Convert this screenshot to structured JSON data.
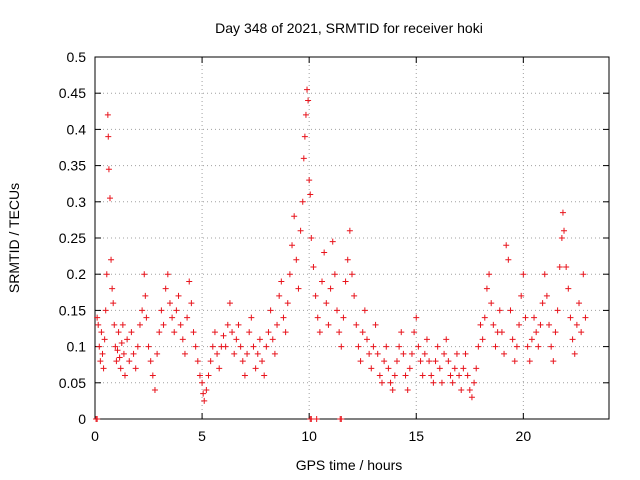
{
  "chart_data": {
    "type": "scatter",
    "title": "Day 348 of 2021, SRMTID for receiver hoki",
    "xlabel": "GPS time / hours",
    "ylabel": "SRMTID / TECUs",
    "xlim": [
      0,
      24
    ],
    "ylim": [
      0,
      0.5
    ],
    "xticks": [
      0,
      5,
      10,
      15,
      20
    ],
    "xtick_labels": [
      "0",
      "5",
      "10",
      "15",
      "20"
    ],
    "yticks": [
      0,
      0.05,
      0.1,
      0.15,
      0.2,
      0.25,
      0.3,
      0.35,
      0.4,
      0.45,
      0.5
    ],
    "ytick_labels": [
      "0",
      "0.05",
      "0.1",
      "0.15",
      "0.2",
      "0.25",
      "0.3",
      "0.35",
      "0.4",
      "0.45",
      "0.5"
    ],
    "grid": true,
    "marker": "+",
    "color": "#e8141c",
    "series": [
      {
        "name": "SRMTID",
        "points": [
          [
            0.1,
            0.14
          ],
          [
            0.15,
            0.13
          ],
          [
            0.2,
            0.1
          ],
          [
            0.25,
            0.08
          ],
          [
            0.3,
            0.12
          ],
          [
            0.35,
            0.09
          ],
          [
            0.4,
            0.07
          ],
          [
            0.45,
            0.11
          ],
          [
            0.5,
            0.15
          ],
          [
            0.55,
            0.2
          ],
          [
            0.6,
            0.42
          ],
          [
            0.62,
            0.39
          ],
          [
            0.65,
            0.345
          ],
          [
            0.7,
            0.305
          ],
          [
            0.75,
            0.22
          ],
          [
            0.8,
            0.18
          ],
          [
            0.85,
            0.16
          ],
          [
            0.9,
            0.13
          ],
          [
            0.95,
            0.1
          ],
          [
            1.0,
            0.08
          ],
          [
            1.05,
            0.095
          ],
          [
            1.1,
            0.12
          ],
          [
            1.15,
            0.085
          ],
          [
            1.2,
            0.07
          ],
          [
            1.25,
            0.105
          ],
          [
            1.3,
            0.13
          ],
          [
            1.35,
            0.09
          ],
          [
            1.4,
            0.06
          ],
          [
            1.5,
            0.11
          ],
          [
            1.6,
            0.08
          ],
          [
            1.7,
            0.12
          ],
          [
            1.8,
            0.09
          ],
          [
            1.9,
            0.07
          ],
          [
            2.0,
            0.1
          ],
          [
            2.1,
            0.13
          ],
          [
            2.2,
            0.15
          ],
          [
            2.3,
            0.2
          ],
          [
            2.35,
            0.17
          ],
          [
            2.4,
            0.14
          ],
          [
            2.5,
            0.1
          ],
          [
            2.6,
            0.08
          ],
          [
            2.7,
            0.06
          ],
          [
            2.8,
            0.04
          ],
          [
            2.9,
            0.09
          ],
          [
            3.0,
            0.12
          ],
          [
            3.1,
            0.15
          ],
          [
            3.2,
            0.13
          ],
          [
            3.3,
            0.18
          ],
          [
            3.4,
            0.2
          ],
          [
            3.5,
            0.16
          ],
          [
            3.6,
            0.14
          ],
          [
            3.7,
            0.12
          ],
          [
            3.8,
            0.15
          ],
          [
            3.9,
            0.17
          ],
          [
            4.0,
            0.13
          ],
          [
            4.1,
            0.11
          ],
          [
            4.2,
            0.09
          ],
          [
            4.3,
            0.14
          ],
          [
            4.4,
            0.19
          ],
          [
            4.5,
            0.16
          ],
          [
            4.6,
            0.12
          ],
          [
            4.7,
            0.1
          ],
          [
            4.8,
            0.08
          ],
          [
            4.9,
            0.06
          ],
          [
            5.0,
            0.05
          ],
          [
            5.05,
            0.035
          ],
          [
            5.1,
            0.025
          ],
          [
            5.2,
            0.04
          ],
          [
            5.3,
            0.06
          ],
          [
            5.4,
            0.08
          ],
          [
            5.5,
            0.1
          ],
          [
            5.6,
            0.12
          ],
          [
            5.7,
            0.09
          ],
          [
            5.8,
            0.07
          ],
          [
            5.9,
            0.1
          ],
          [
            6.0,
            0.115
          ],
          [
            6.1,
            0.1
          ],
          [
            6.2,
            0.13
          ],
          [
            6.3,
            0.16
          ],
          [
            6.4,
            0.12
          ],
          [
            6.5,
            0.09
          ],
          [
            6.6,
            0.11
          ],
          [
            6.7,
            0.13
          ],
          [
            6.8,
            0.1
          ],
          [
            6.9,
            0.08
          ],
          [
            7.0,
            0.06
          ],
          [
            7.1,
            0.09
          ],
          [
            7.2,
            0.12
          ],
          [
            7.3,
            0.14
          ],
          [
            7.4,
            0.1
          ],
          [
            7.5,
            0.07
          ],
          [
            7.6,
            0.09
          ],
          [
            7.7,
            0.11
          ],
          [
            7.8,
            0.08
          ],
          [
            7.9,
            0.06
          ],
          [
            8.0,
            0.1
          ],
          [
            8.1,
            0.12
          ],
          [
            8.2,
            0.15
          ],
          [
            8.3,
            0.11
          ],
          [
            8.4,
            0.09
          ],
          [
            8.5,
            0.13
          ],
          [
            8.6,
            0.17
          ],
          [
            8.7,
            0.19
          ],
          [
            8.8,
            0.14
          ],
          [
            8.9,
            0.12
          ],
          [
            9.0,
            0.16
          ],
          [
            9.1,
            0.2
          ],
          [
            9.2,
            0.24
          ],
          [
            9.3,
            0.28
          ],
          [
            9.4,
            0.22
          ],
          [
            9.5,
            0.18
          ],
          [
            9.6,
            0.26
          ],
          [
            9.7,
            0.3
          ],
          [
            9.75,
            0.36
          ],
          [
            9.8,
            0.39
          ],
          [
            9.85,
            0.42
          ],
          [
            9.9,
            0.455
          ],
          [
            9.95,
            0.44
          ],
          [
            10.0,
            0.33
          ],
          [
            10.05,
            0.31
          ],
          [
            10.1,
            0.25
          ],
          [
            10.2,
            0.21
          ],
          [
            10.3,
            0.17
          ],
          [
            10.4,
            0.14
          ],
          [
            10.5,
            0.12
          ],
          [
            10.6,
            0.19
          ],
          [
            10.7,
            0.23
          ],
          [
            10.8,
            0.16
          ],
          [
            10.9,
            0.13
          ],
          [
            11.0,
            0.18
          ],
          [
            11.1,
            0.245
          ],
          [
            11.2,
            0.2
          ],
          [
            11.3,
            0.15
          ],
          [
            11.4,
            0.12
          ],
          [
            11.5,
            0.1
          ],
          [
            11.6,
            0.14
          ],
          [
            11.7,
            0.19
          ],
          [
            11.8,
            0.22
          ],
          [
            11.9,
            0.26
          ],
          [
            12.0,
            0.2
          ],
          [
            12.1,
            0.17
          ],
          [
            12.2,
            0.13
          ],
          [
            12.3,
            0.1
          ],
          [
            12.4,
            0.08
          ],
          [
            12.5,
            0.12
          ],
          [
            12.6,
            0.15
          ],
          [
            12.7,
            0.11
          ],
          [
            12.8,
            0.09
          ],
          [
            12.9,
            0.07
          ],
          [
            13.0,
            0.1
          ],
          [
            13.1,
            0.13
          ],
          [
            13.2,
            0.09
          ],
          [
            13.3,
            0.06
          ],
          [
            13.4,
            0.05
          ],
          [
            13.5,
            0.08
          ],
          [
            13.6,
            0.1
          ],
          [
            13.7,
            0.07
          ],
          [
            13.8,
            0.05
          ],
          [
            13.9,
            0.04
          ],
          [
            14.0,
            0.06
          ],
          [
            14.1,
            0.08
          ],
          [
            14.2,
            0.1
          ],
          [
            14.3,
            0.12
          ],
          [
            14.4,
            0.09
          ],
          [
            14.5,
            0.06
          ],
          [
            14.6,
            0.04
          ],
          [
            14.7,
            0.07
          ],
          [
            14.8,
            0.09
          ],
          [
            14.9,
            0.12
          ],
          [
            15.0,
            0.14
          ],
          [
            15.1,
            0.1
          ],
          [
            15.2,
            0.08
          ],
          [
            15.3,
            0.06
          ],
          [
            15.4,
            0.09
          ],
          [
            15.5,
            0.11
          ],
          [
            15.6,
            0.08
          ],
          [
            15.7,
            0.06
          ],
          [
            15.8,
            0.05
          ],
          [
            15.9,
            0.08
          ],
          [
            16.0,
            0.1
          ],
          [
            16.1,
            0.07
          ],
          [
            16.2,
            0.05
          ],
          [
            16.3,
            0.09
          ],
          [
            16.4,
            0.11
          ],
          [
            16.5,
            0.08
          ],
          [
            16.6,
            0.06
          ],
          [
            16.7,
            0.05
          ],
          [
            16.8,
            0.07
          ],
          [
            16.9,
            0.09
          ],
          [
            17.0,
            0.06
          ],
          [
            17.1,
            0.04
          ],
          [
            17.2,
            0.07
          ],
          [
            17.3,
            0.09
          ],
          [
            17.4,
            0.06
          ],
          [
            17.5,
            0.04
          ],
          [
            17.6,
            0.03
          ],
          [
            17.7,
            0.05
          ],
          [
            17.8,
            0.07
          ],
          [
            17.9,
            0.1
          ],
          [
            18.0,
            0.13
          ],
          [
            18.1,
            0.11
          ],
          [
            18.2,
            0.14
          ],
          [
            18.3,
            0.18
          ],
          [
            18.4,
            0.2
          ],
          [
            18.5,
            0.16
          ],
          [
            18.6,
            0.13
          ],
          [
            18.7,
            0.1
          ],
          [
            18.8,
            0.12
          ],
          [
            18.9,
            0.15
          ],
          [
            19.0,
            0.12
          ],
          [
            19.1,
            0.09
          ],
          [
            19.2,
            0.24
          ],
          [
            19.3,
            0.22
          ],
          [
            19.4,
            0.15
          ],
          [
            19.5,
            0.11
          ],
          [
            19.6,
            0.08
          ],
          [
            19.7,
            0.1
          ],
          [
            19.8,
            0.13
          ],
          [
            19.9,
            0.17
          ],
          [
            20.0,
            0.2
          ],
          [
            20.1,
            0.14
          ],
          [
            20.2,
            0.1
          ],
          [
            20.3,
            0.08
          ],
          [
            20.4,
            0.11
          ],
          [
            20.5,
            0.14
          ],
          [
            20.6,
            0.12
          ],
          [
            20.7,
            0.1
          ],
          [
            20.8,
            0.13
          ],
          [
            20.9,
            0.16
          ],
          [
            21.0,
            0.2
          ],
          [
            21.1,
            0.17
          ],
          [
            21.2,
            0.13
          ],
          [
            21.3,
            0.1
          ],
          [
            21.4,
            0.08
          ],
          [
            21.5,
            0.12
          ],
          [
            21.6,
            0.15
          ],
          [
            21.7,
            0.21
          ],
          [
            21.8,
            0.25
          ],
          [
            21.85,
            0.285
          ],
          [
            21.9,
            0.26
          ],
          [
            22.0,
            0.21
          ],
          [
            22.1,
            0.18
          ],
          [
            22.2,
            0.14
          ],
          [
            22.3,
            0.11
          ],
          [
            22.4,
            0.09
          ],
          [
            22.5,
            0.13
          ],
          [
            22.6,
            0.16
          ],
          [
            22.7,
            0.12
          ],
          [
            22.8,
            0.2
          ],
          [
            22.9,
            0.14
          ],
          [
            0.05,
            0.0
          ],
          [
            0.1,
            0.0
          ],
          [
            10.05,
            0.0
          ],
          [
            10.1,
            0.0
          ],
          [
            10.35,
            0.0
          ],
          [
            11.45,
            0.0
          ],
          [
            11.5,
            0.0
          ]
        ]
      }
    ]
  }
}
